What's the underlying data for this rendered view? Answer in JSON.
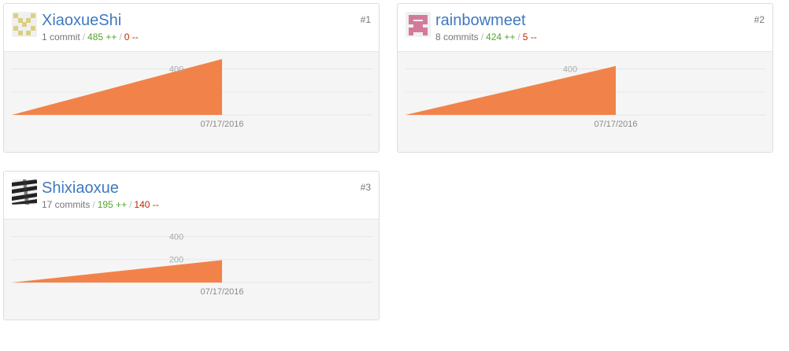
{
  "contributors": [
    {
      "username": "XiaoxueShi",
      "commits": "1 commit",
      "additions": "485 ++",
      "deletions": "0 --",
      "rank": "#1",
      "avatar_color": "#d9cf85",
      "avatar_icon": "identicon-icon",
      "chart_data": {
        "type": "area",
        "x": [
          "",
          "07/17/2016"
        ],
        "values": [
          0,
          485
        ],
        "ylim": [
          0,
          485
        ],
        "y_ticks": [
          400
        ],
        "x_tick_labels": [
          "07/17/2016"
        ],
        "color": "#f1834a"
      }
    },
    {
      "username": "rainbowmeet",
      "commits": "8 commits",
      "additions": "424 ++",
      "deletions": "5 --",
      "rank": "#2",
      "avatar_color": "#d37a9a",
      "avatar_icon": "identicon-icon",
      "chart_data": {
        "type": "area",
        "x": [
          "",
          "07/17/2016"
        ],
        "values": [
          0,
          424
        ],
        "ylim": [
          0,
          485
        ],
        "y_ticks": [
          400
        ],
        "x_tick_labels": [
          "07/17/2016"
        ],
        "color": "#f1834a"
      }
    },
    {
      "username": "Shixiaoxue",
      "commits": "17 commits",
      "additions": "195 ++",
      "deletions": "140 --",
      "rank": "#3",
      "avatar_color": "#222222",
      "avatar_icon": "zebra-avatar-icon",
      "chart_data": {
        "type": "area",
        "x": [
          "",
          "07/17/2016"
        ],
        "values": [
          0,
          195
        ],
        "ylim": [
          0,
          485
        ],
        "y_ticks": [
          400,
          200
        ],
        "x_tick_labels": [
          "07/17/2016"
        ],
        "color": "#f1834a"
      }
    }
  ]
}
